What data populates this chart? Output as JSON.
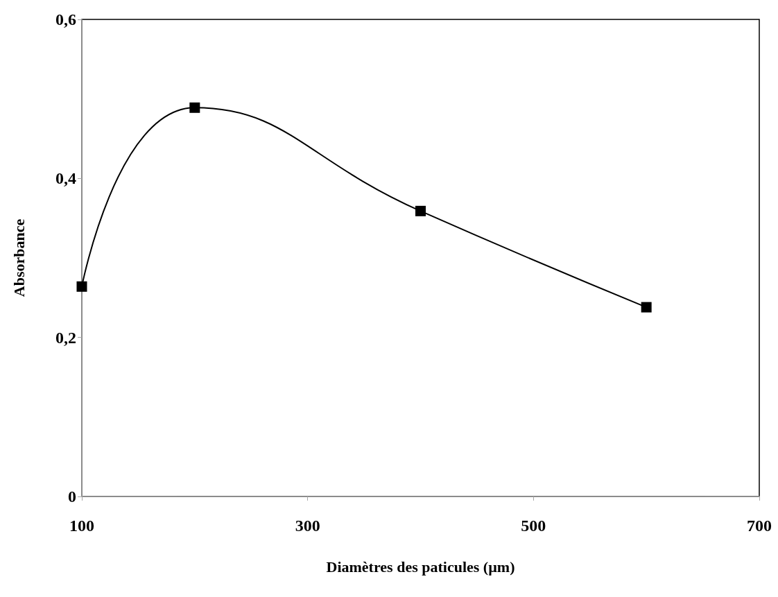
{
  "chart_data": {
    "type": "line",
    "xlabel": "Diamètres des paticules (µm)",
    "ylabel": "Absorbance",
    "x": [
      100,
      200,
      400,
      600
    ],
    "series": [
      {
        "color": "#000000",
        "values": [
          0.264,
          0.489,
          0.359,
          0.238
        ]
      }
    ],
    "xlim": [
      100,
      700
    ],
    "xticks": [
      100,
      300,
      500,
      700
    ],
    "ylim": [
      0,
      0.6
    ],
    "yticks": [
      0,
      {
        "value": 0.2,
        "label": "0,2"
      },
      {
        "value": 0.4,
        "label": "0,4"
      },
      {
        "value": 0.6,
        "label": "0,6"
      }
    ],
    "grid": false,
    "marker": "square",
    "line_style": "solid"
  }
}
